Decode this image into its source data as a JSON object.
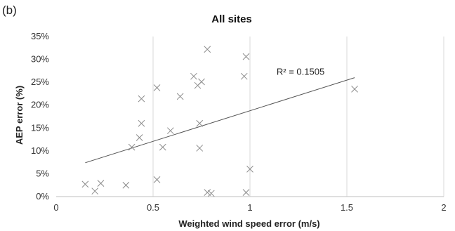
{
  "panel_label": "(b)",
  "chart_data": {
    "type": "scatter",
    "title": "All sites",
    "xlabel": "Weighted wind speed error (m/s)",
    "ylabel": "AEP error (%)",
    "xlim": [
      0,
      2
    ],
    "ylim": [
      0,
      35
    ],
    "x_ticks": [
      0,
      0.5,
      1,
      1.5,
      2
    ],
    "x_tick_labels": [
      "0",
      "0.5",
      "1",
      "1.5",
      "2"
    ],
    "y_ticks": [
      0,
      5,
      10,
      15,
      20,
      25,
      30,
      35
    ],
    "y_tick_labels": [
      "0%",
      "5%",
      "10%",
      "15%",
      "20%",
      "25%",
      "30%",
      "35%"
    ],
    "grid": "vertical",
    "marker": "x",
    "marker_color": "#8c8c8c",
    "trendline_color": "#555555",
    "points": [
      {
        "x": 0.15,
        "y": 2.7
      },
      {
        "x": 0.2,
        "y": 1.2
      },
      {
        "x": 0.23,
        "y": 2.9
      },
      {
        "x": 0.36,
        "y": 2.5
      },
      {
        "x": 0.39,
        "y": 10.8
      },
      {
        "x": 0.43,
        "y": 12.9
      },
      {
        "x": 0.44,
        "y": 16.0
      },
      {
        "x": 0.44,
        "y": 21.4
      },
      {
        "x": 0.52,
        "y": 23.8
      },
      {
        "x": 0.52,
        "y": 3.7
      },
      {
        "x": 0.55,
        "y": 10.8
      },
      {
        "x": 0.59,
        "y": 14.4
      },
      {
        "x": 0.64,
        "y": 21.9
      },
      {
        "x": 0.71,
        "y": 26.3
      },
      {
        "x": 0.73,
        "y": 24.3
      },
      {
        "x": 0.74,
        "y": 10.6
      },
      {
        "x": 0.74,
        "y": 16.0
      },
      {
        "x": 0.75,
        "y": 25.1
      },
      {
        "x": 0.78,
        "y": 32.2
      },
      {
        "x": 0.78,
        "y": 0.9
      },
      {
        "x": 0.8,
        "y": 0.7
      },
      {
        "x": 0.97,
        "y": 26.3
      },
      {
        "x": 0.98,
        "y": 30.6
      },
      {
        "x": 0.98,
        "y": 0.9
      },
      {
        "x": 1.0,
        "y": 6.0
      },
      {
        "x": 1.54,
        "y": 23.5
      }
    ],
    "trendline": {
      "type": "linear",
      "x": [
        0.15,
        1.54
      ],
      "y": [
        7.4,
        26.0
      ],
      "label": "R² = 0.1505"
    }
  }
}
